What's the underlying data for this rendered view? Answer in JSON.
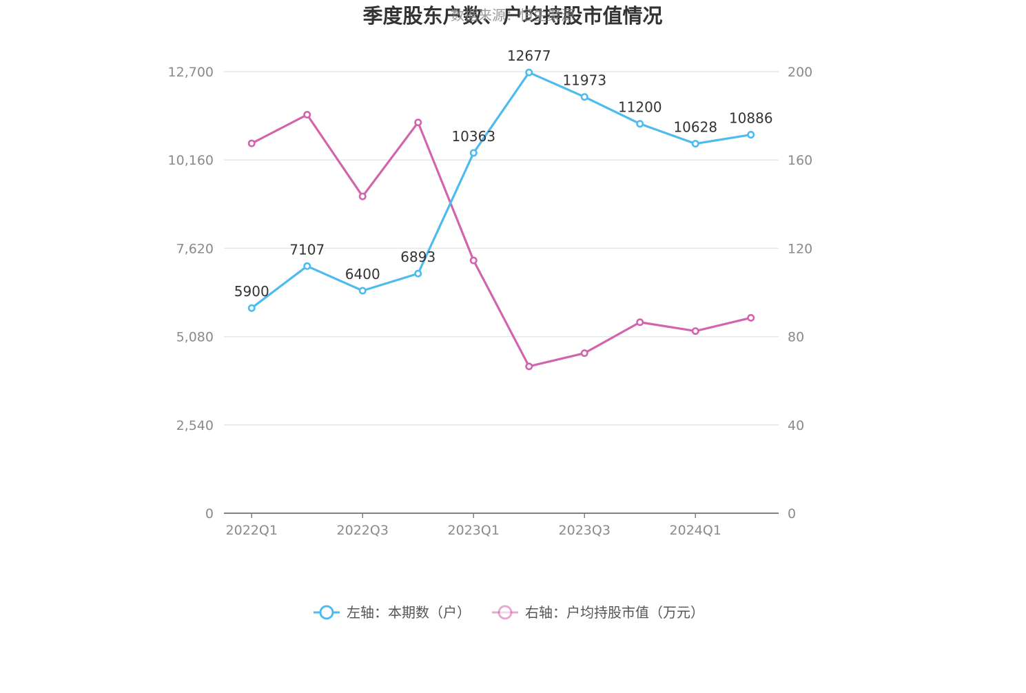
{
  "chart_data": {
    "type": "line",
    "title": "季度股东户数、户均持股市值情况",
    "watermark": "数据来源：恒生聚源",
    "x": [
      "2022Q1",
      "2022Q2",
      "2022Q3",
      "2022Q4",
      "2023Q1",
      "2023Q2",
      "2023Q3",
      "2023Q4",
      "2024Q1",
      "2024Q2"
    ],
    "x_tick_labels": [
      "2022Q1",
      "2022Q3",
      "2023Q1",
      "2023Q3",
      "2024Q1"
    ],
    "left_axis": {
      "min": 0,
      "max": 12700,
      "ticks": [
        0,
        2540,
        5080,
        7620,
        10160,
        12700
      ],
      "tick_labels": [
        "0",
        "2,540",
        "5,080",
        "7,620",
        "10,160",
        "12,700"
      ]
    },
    "right_axis": {
      "min": 0,
      "max": 200,
      "ticks": [
        0,
        40,
        80,
        120,
        160,
        200
      ],
      "tick_labels": [
        "0",
        "40",
        "80",
        "120",
        "160",
        "200"
      ]
    },
    "grid": true,
    "legend_position": "bottom",
    "series": [
      {
        "name": "左轴：本期数（户）",
        "axis": "left",
        "color": "#4dbbee",
        "values": [
          5900,
          7107,
          6400,
          6893,
          10363,
          12677,
          11973,
          11200,
          10628,
          10886
        ],
        "labels": [
          "5900",
          "7107",
          "6400",
          "6893",
          "10363",
          "12677",
          "11973",
          "11200",
          "10628",
          "10886"
        ]
      },
      {
        "name": "右轴：户均持股市值（万元）",
        "axis": "right",
        "color": "#d264ad",
        "values": [
          167.5,
          180.5,
          143.5,
          177.0,
          114.5,
          66.5,
          72.5,
          86.5,
          82.5,
          88.5
        ]
      }
    ]
  }
}
